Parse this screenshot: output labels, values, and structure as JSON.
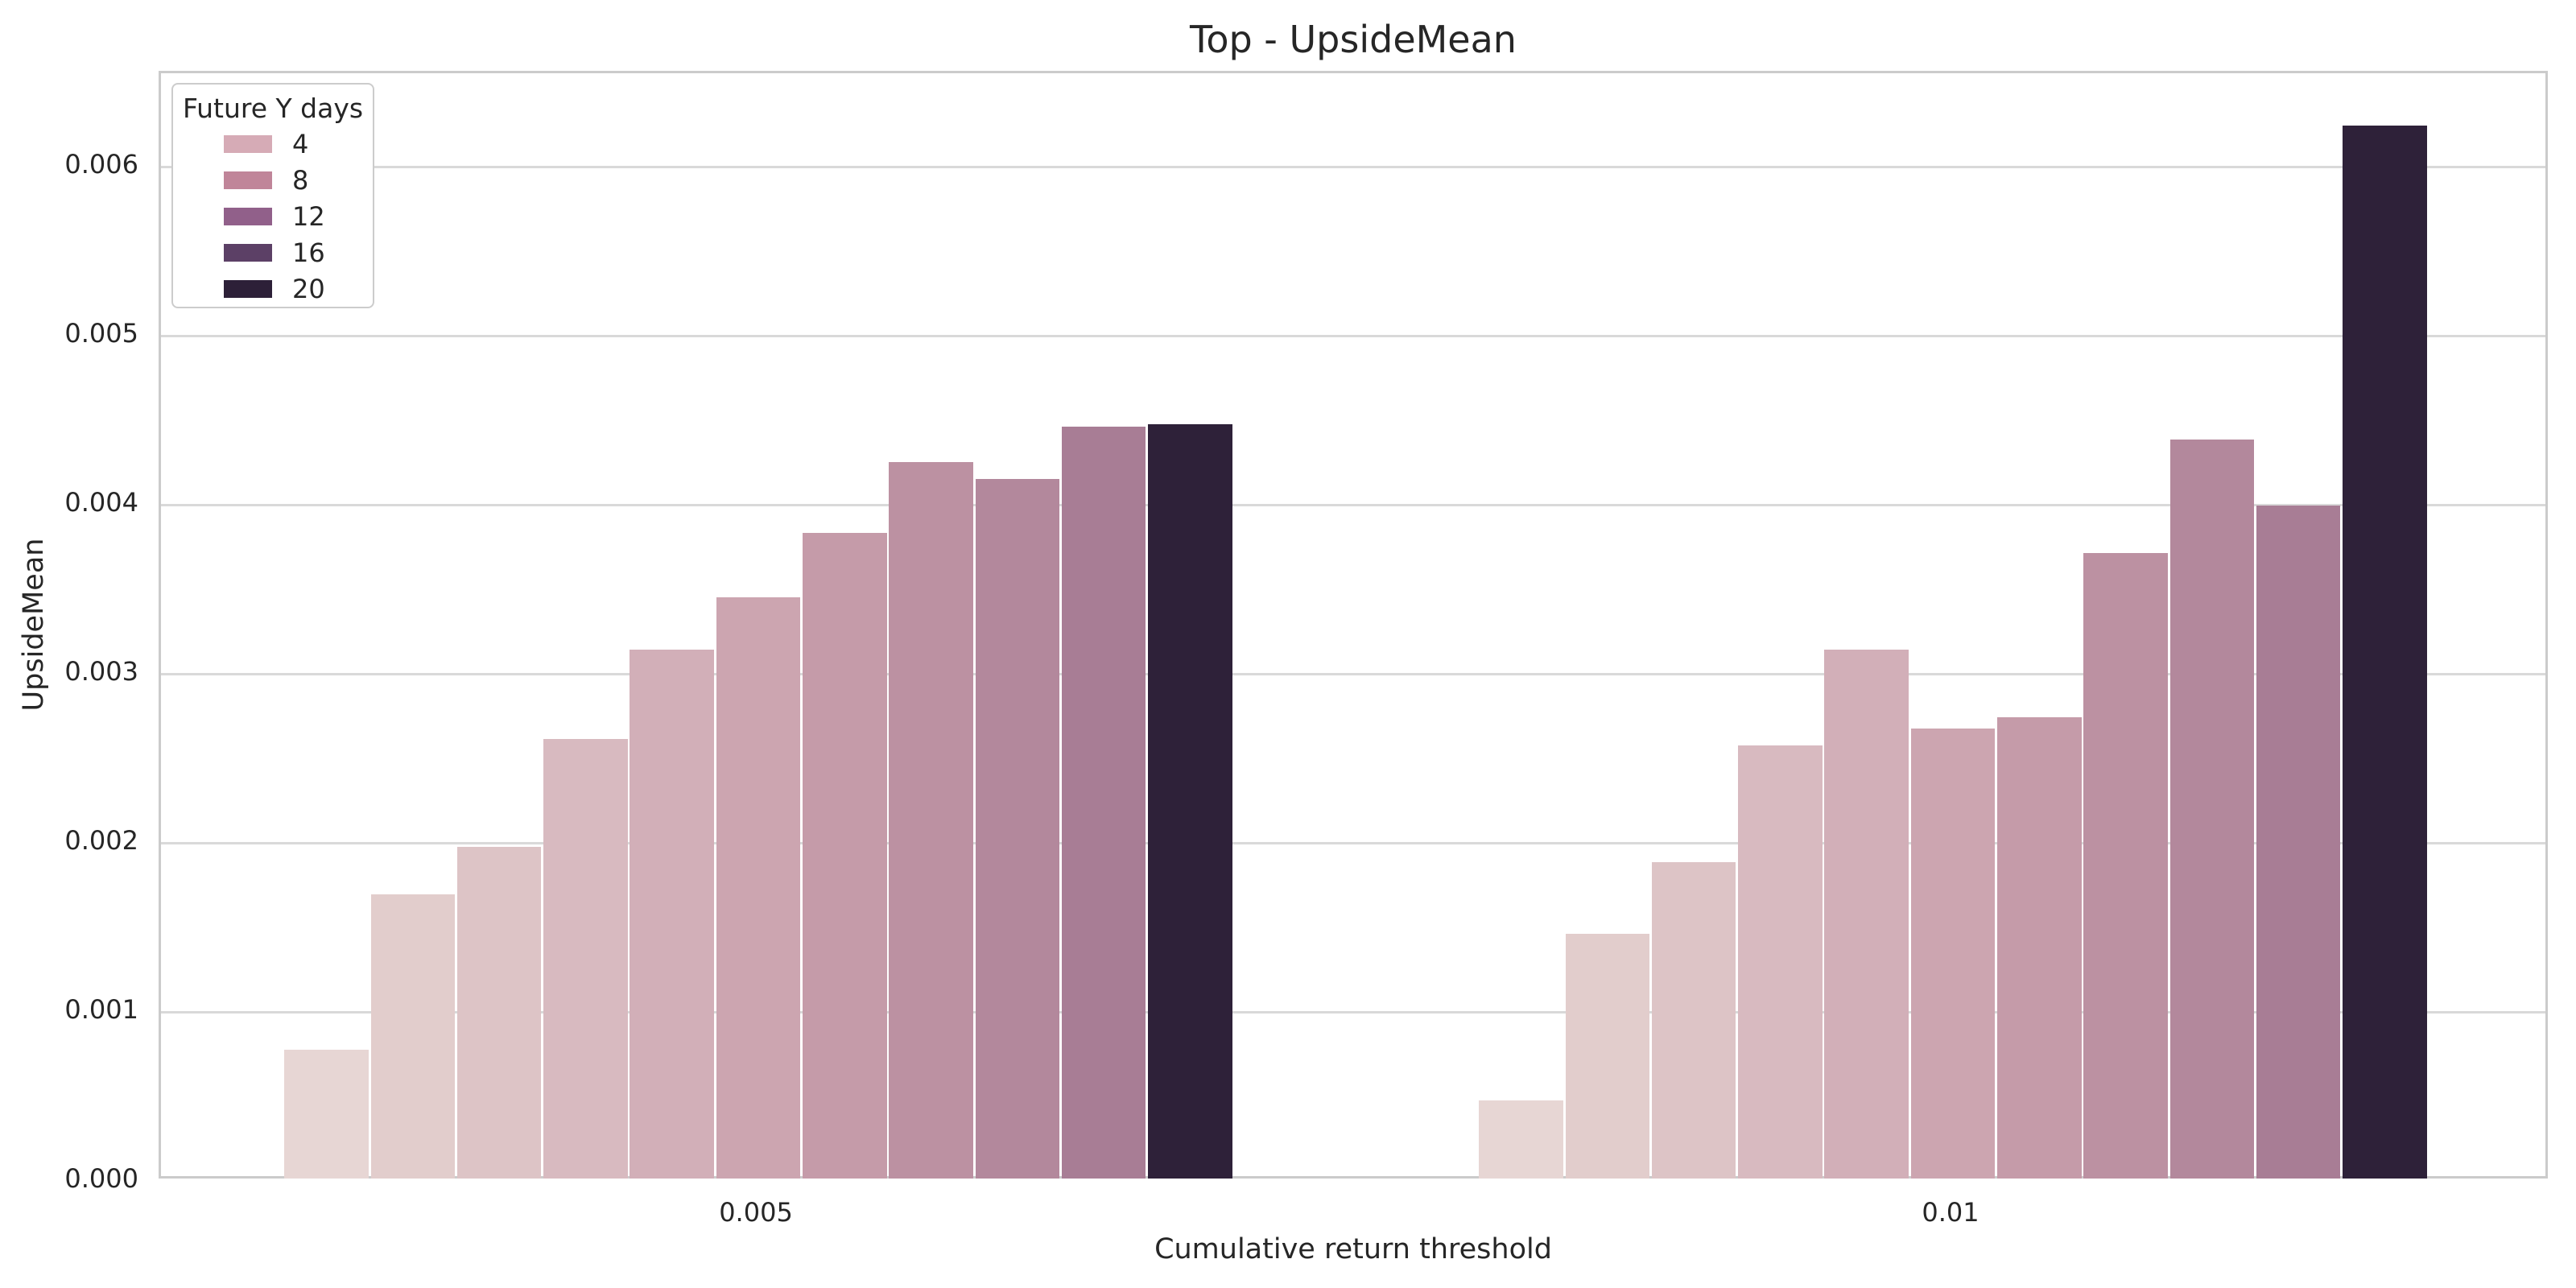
{
  "title": "Top - UpsideMean",
  "y_axis": {
    "label": "UpsideMean",
    "ticks": [
      "0.000",
      "0.001",
      "0.002",
      "0.003",
      "0.004",
      "0.005",
      "0.006"
    ]
  },
  "x_axis": {
    "label": "Cumulative return threshold",
    "ticks": [
      "0.005",
      "0.01"
    ]
  },
  "legend": {
    "title": "Future Y days",
    "entries": [
      {
        "label": "4",
        "color": "#d6abb6"
      },
      {
        "label": "8",
        "color": "#c08599"
      },
      {
        "label": "12",
        "color": "#91608a"
      },
      {
        "label": "16",
        "color": "#5c4066"
      },
      {
        "label": "20",
        "color": "#2d2038"
      }
    ]
  },
  "chart_data": {
    "type": "bar",
    "subtype": "grouped",
    "title": "Top - UpsideMean",
    "xlabel": "Cumulative return threshold",
    "ylabel": "UpsideMean",
    "categories": [
      "0.005",
      "0.01"
    ],
    "hue_title": "Future Y days",
    "legend_entries": [
      "4",
      "8",
      "12",
      "16",
      "20"
    ],
    "legend_position": "upper left",
    "grid": true,
    "ylim": [
      0,
      0.00655
    ],
    "y_tick_step": 0.001,
    "series": [
      {
        "hue_index": 1,
        "color": "#e7d6d4",
        "values": [
          0.00076,
          0.00046
        ]
      },
      {
        "hue_index": 2,
        "color": "#e2cdcc",
        "values": [
          0.00168,
          0.00145
        ]
      },
      {
        "hue_index": 3,
        "color": "#ddc4c6",
        "values": [
          0.00196,
          0.00187
        ]
      },
      {
        "hue_index": 4,
        "color": "#d8bac0",
        "values": [
          0.0026,
          0.00256
        ]
      },
      {
        "hue_index": 5,
        "color": "#d2afb8",
        "values": [
          0.00313,
          0.00313
        ]
      },
      {
        "hue_index": 6,
        "color": "#cca5b0",
        "values": [
          0.00344,
          0.00266
        ]
      },
      {
        "hue_index": 7,
        "color": "#c59ba9",
        "values": [
          0.00382,
          0.00273
        ]
      },
      {
        "hue_index": 8,
        "color": "#bc91a2",
        "values": [
          0.00424,
          0.0037
        ]
      },
      {
        "hue_index": 9,
        "color": "#b3889c",
        "values": [
          0.00414,
          0.00437
        ]
      },
      {
        "hue_index": 10,
        "color": "#a87d95",
        "values": [
          0.00445,
          0.00398
        ]
      },
      {
        "hue_index": 11,
        "color": "#2e2139",
        "values": [
          0.00446,
          0.00623
        ]
      }
    ]
  }
}
